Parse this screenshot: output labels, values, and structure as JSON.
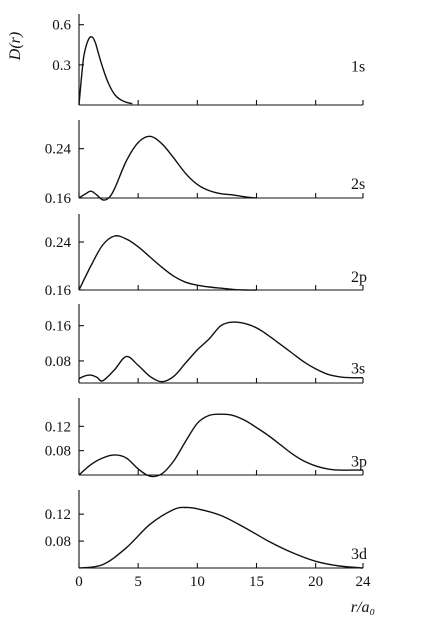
{
  "chart_data": {
    "type": "line",
    "ylabel": "D(r)",
    "xlabel": "r/a₀",
    "xlim": [
      0,
      24
    ],
    "x_ticks": [
      "0",
      "5",
      "10",
      "15",
      "20",
      "24"
    ],
    "grid": false,
    "panels": [
      {
        "name": "1s",
        "y_ticks": [
          "0.6",
          "0.3"
        ],
        "y_tick_values": [
          0.6,
          0.3
        ],
        "ylim": [
          0,
          0.65
        ],
        "x": [
          0,
          0.2,
          0.4,
          0.6,
          0.8,
          1.0,
          1.2,
          1.4,
          1.6,
          2.0,
          2.5,
          3.0,
          3.5,
          4.0,
          4.5
        ],
        "values": [
          0,
          0.2,
          0.36,
          0.44,
          0.49,
          0.51,
          0.5,
          0.46,
          0.4,
          0.28,
          0.16,
          0.08,
          0.04,
          0.02,
          0.01
        ]
      },
      {
        "name": "2s",
        "y_ticks": [
          "0.24",
          "0.16"
        ],
        "y_tick_values": [
          0.24,
          0.16
        ],
        "ylim": [
          0.16,
          0.28
        ],
        "x": [
          0,
          0.5,
          1.0,
          1.5,
          2.0,
          2.5,
          3,
          4,
          5,
          6,
          7,
          8,
          9,
          10,
          11,
          12,
          13,
          14,
          15
        ],
        "values": [
          0.16,
          0.166,
          0.171,
          0.165,
          0.157,
          0.16,
          0.175,
          0.22,
          0.25,
          0.26,
          0.248,
          0.225,
          0.2,
          0.182,
          0.172,
          0.167,
          0.165,
          0.162,
          0.16
        ]
      },
      {
        "name": "2p",
        "y_ticks": [
          "0.24",
          "0.16"
        ],
        "y_tick_values": [
          0.24,
          0.16
        ],
        "ylim": [
          0.16,
          0.28
        ],
        "x": [
          0,
          1,
          2,
          3,
          4,
          5,
          6,
          7,
          8,
          9,
          10,
          11,
          12,
          13,
          14,
          15
        ],
        "values": [
          0.16,
          0.2,
          0.235,
          0.25,
          0.245,
          0.232,
          0.215,
          0.198,
          0.183,
          0.173,
          0.168,
          0.165,
          0.163,
          0.161,
          0.16,
          0.16
        ]
      },
      {
        "name": "3s",
        "y_ticks": [
          "0.16",
          "0.08"
        ],
        "y_tick_values": [
          0.16,
          0.08
        ],
        "ylim": [
          0.03,
          0.2
        ],
        "x": [
          0,
          0.5,
          1.0,
          1.5,
          2.0,
          3,
          4,
          5,
          6,
          7,
          8,
          9,
          10,
          11,
          12,
          13,
          14,
          15,
          16,
          17,
          18,
          19,
          20,
          21,
          22,
          23,
          24
        ],
        "values": [
          0.04,
          0.046,
          0.048,
          0.043,
          0.035,
          0.06,
          0.09,
          0.07,
          0.045,
          0.033,
          0.045,
          0.075,
          0.105,
          0.13,
          0.16,
          0.168,
          0.165,
          0.155,
          0.138,
          0.118,
          0.098,
          0.078,
          0.062,
          0.05,
          0.044,
          0.042,
          0.042
        ]
      },
      {
        "name": "3p",
        "y_ticks": [
          "0.12",
          "0.08"
        ],
        "y_tick_values": [
          0.12,
          0.08
        ],
        "ylim": [
          0.04,
          0.16
        ],
        "x": [
          0,
          1,
          2,
          3,
          4,
          5,
          6,
          7,
          8,
          9,
          10,
          11,
          12,
          13,
          14,
          15,
          16,
          17,
          18,
          19,
          20,
          21,
          22,
          23,
          24
        ],
        "values": [
          0.04,
          0.057,
          0.068,
          0.073,
          0.068,
          0.05,
          0.038,
          0.042,
          0.063,
          0.095,
          0.125,
          0.138,
          0.14,
          0.138,
          0.13,
          0.118,
          0.105,
          0.09,
          0.075,
          0.063,
          0.055,
          0.05,
          0.048,
          0.048,
          0.048
        ]
      },
      {
        "name": "3d",
        "y_ticks": [
          "0.12",
          "0.08"
        ],
        "y_tick_values": [
          0.12,
          0.08
        ],
        "ylim": [
          0.04,
          0.15
        ],
        "x": [
          0,
          2,
          4,
          6,
          8,
          9,
          10,
          12,
          14,
          16,
          18,
          20,
          22,
          24
        ],
        "values": [
          0.04,
          0.045,
          0.07,
          0.105,
          0.127,
          0.13,
          0.128,
          0.118,
          0.1,
          0.08,
          0.063,
          0.05,
          0.043,
          0.04
        ]
      }
    ]
  }
}
